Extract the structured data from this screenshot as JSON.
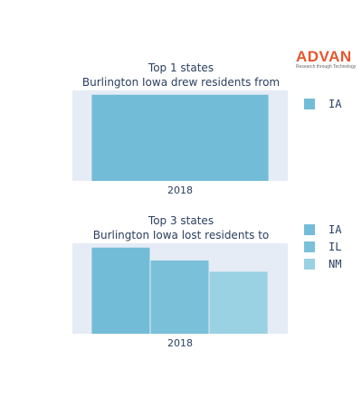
{
  "logo": {
    "text": "ADVAN",
    "tagline": "Research through Technology",
    "color": "#e4572e"
  },
  "chart_data": [
    {
      "type": "bar",
      "title": "Top 1 states",
      "subtitle": "Burlington Iowa drew residents from",
      "categories": [
        "2018"
      ],
      "series": [
        {
          "name": "IA",
          "values": [
            1
          ],
          "color": "#73bcd7"
        }
      ],
      "ylim": [
        0,
        1.05
      ],
      "grid": true,
      "legend": "right"
    },
    {
      "type": "bar",
      "title": "Top 3 states",
      "subtitle": "Burlington Iowa lost residents to",
      "categories": [
        "2018"
      ],
      "series": [
        {
          "name": "IA",
          "values": [
            1.0
          ],
          "color": "#73bcd7"
        },
        {
          "name": "IL",
          "values": [
            0.85
          ],
          "color": "#7bc0d9"
        },
        {
          "name": "NM",
          "values": [
            0.72
          ],
          "color": "#9ad1e3"
        }
      ],
      "ylim": [
        0,
        1.05
      ],
      "grid": true,
      "legend": "right"
    }
  ]
}
